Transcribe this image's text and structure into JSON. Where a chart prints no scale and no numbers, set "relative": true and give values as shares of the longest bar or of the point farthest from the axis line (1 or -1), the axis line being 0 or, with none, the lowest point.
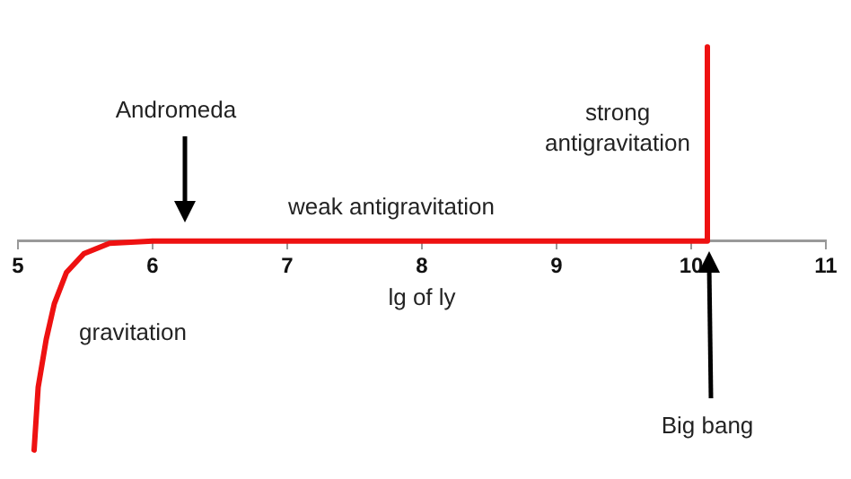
{
  "chart_data": {
    "type": "line",
    "relative": true,
    "xlabel": "lg of ly",
    "marker": "none",
    "xlim": [
      5,
      11
    ],
    "xticks": [
      5,
      6,
      7,
      8,
      9,
      10,
      11
    ],
    "x": [
      5.12,
      5.15,
      5.21,
      5.27,
      5.36,
      5.49,
      5.68,
      6,
      10.12,
      10.12
    ],
    "series": [
      {
        "color": "#ee1111",
        "values": [
          -1,
          -0.7,
          -0.47,
          -0.3,
          -0.15,
          -0.06,
          -0.01,
          0,
          0,
          0.93
        ]
      }
    ],
    "annotations": [
      "Andromeda",
      "weak antigravitation",
      "strong antigravitation",
      "gravitation",
      "Big bang"
    ]
  }
}
